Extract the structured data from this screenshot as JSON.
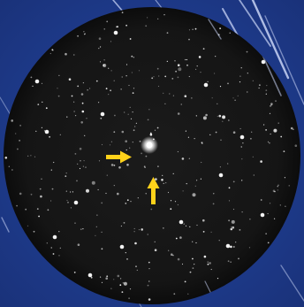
{
  "scene": {
    "background_color": "#1e3a8a",
    "field_color": "#151515",
    "rim_color": "#0c0c0c",
    "star_color": "#ffffff",
    "streak_color": "#c8d4f5",
    "marker_color": "#ffd21a",
    "markers": [
      {
        "name": "right-pointing-arrow-icon",
        "direction": "right"
      },
      {
        "name": "up-pointing-arrow-icon",
        "direction": "up"
      }
    ]
  }
}
